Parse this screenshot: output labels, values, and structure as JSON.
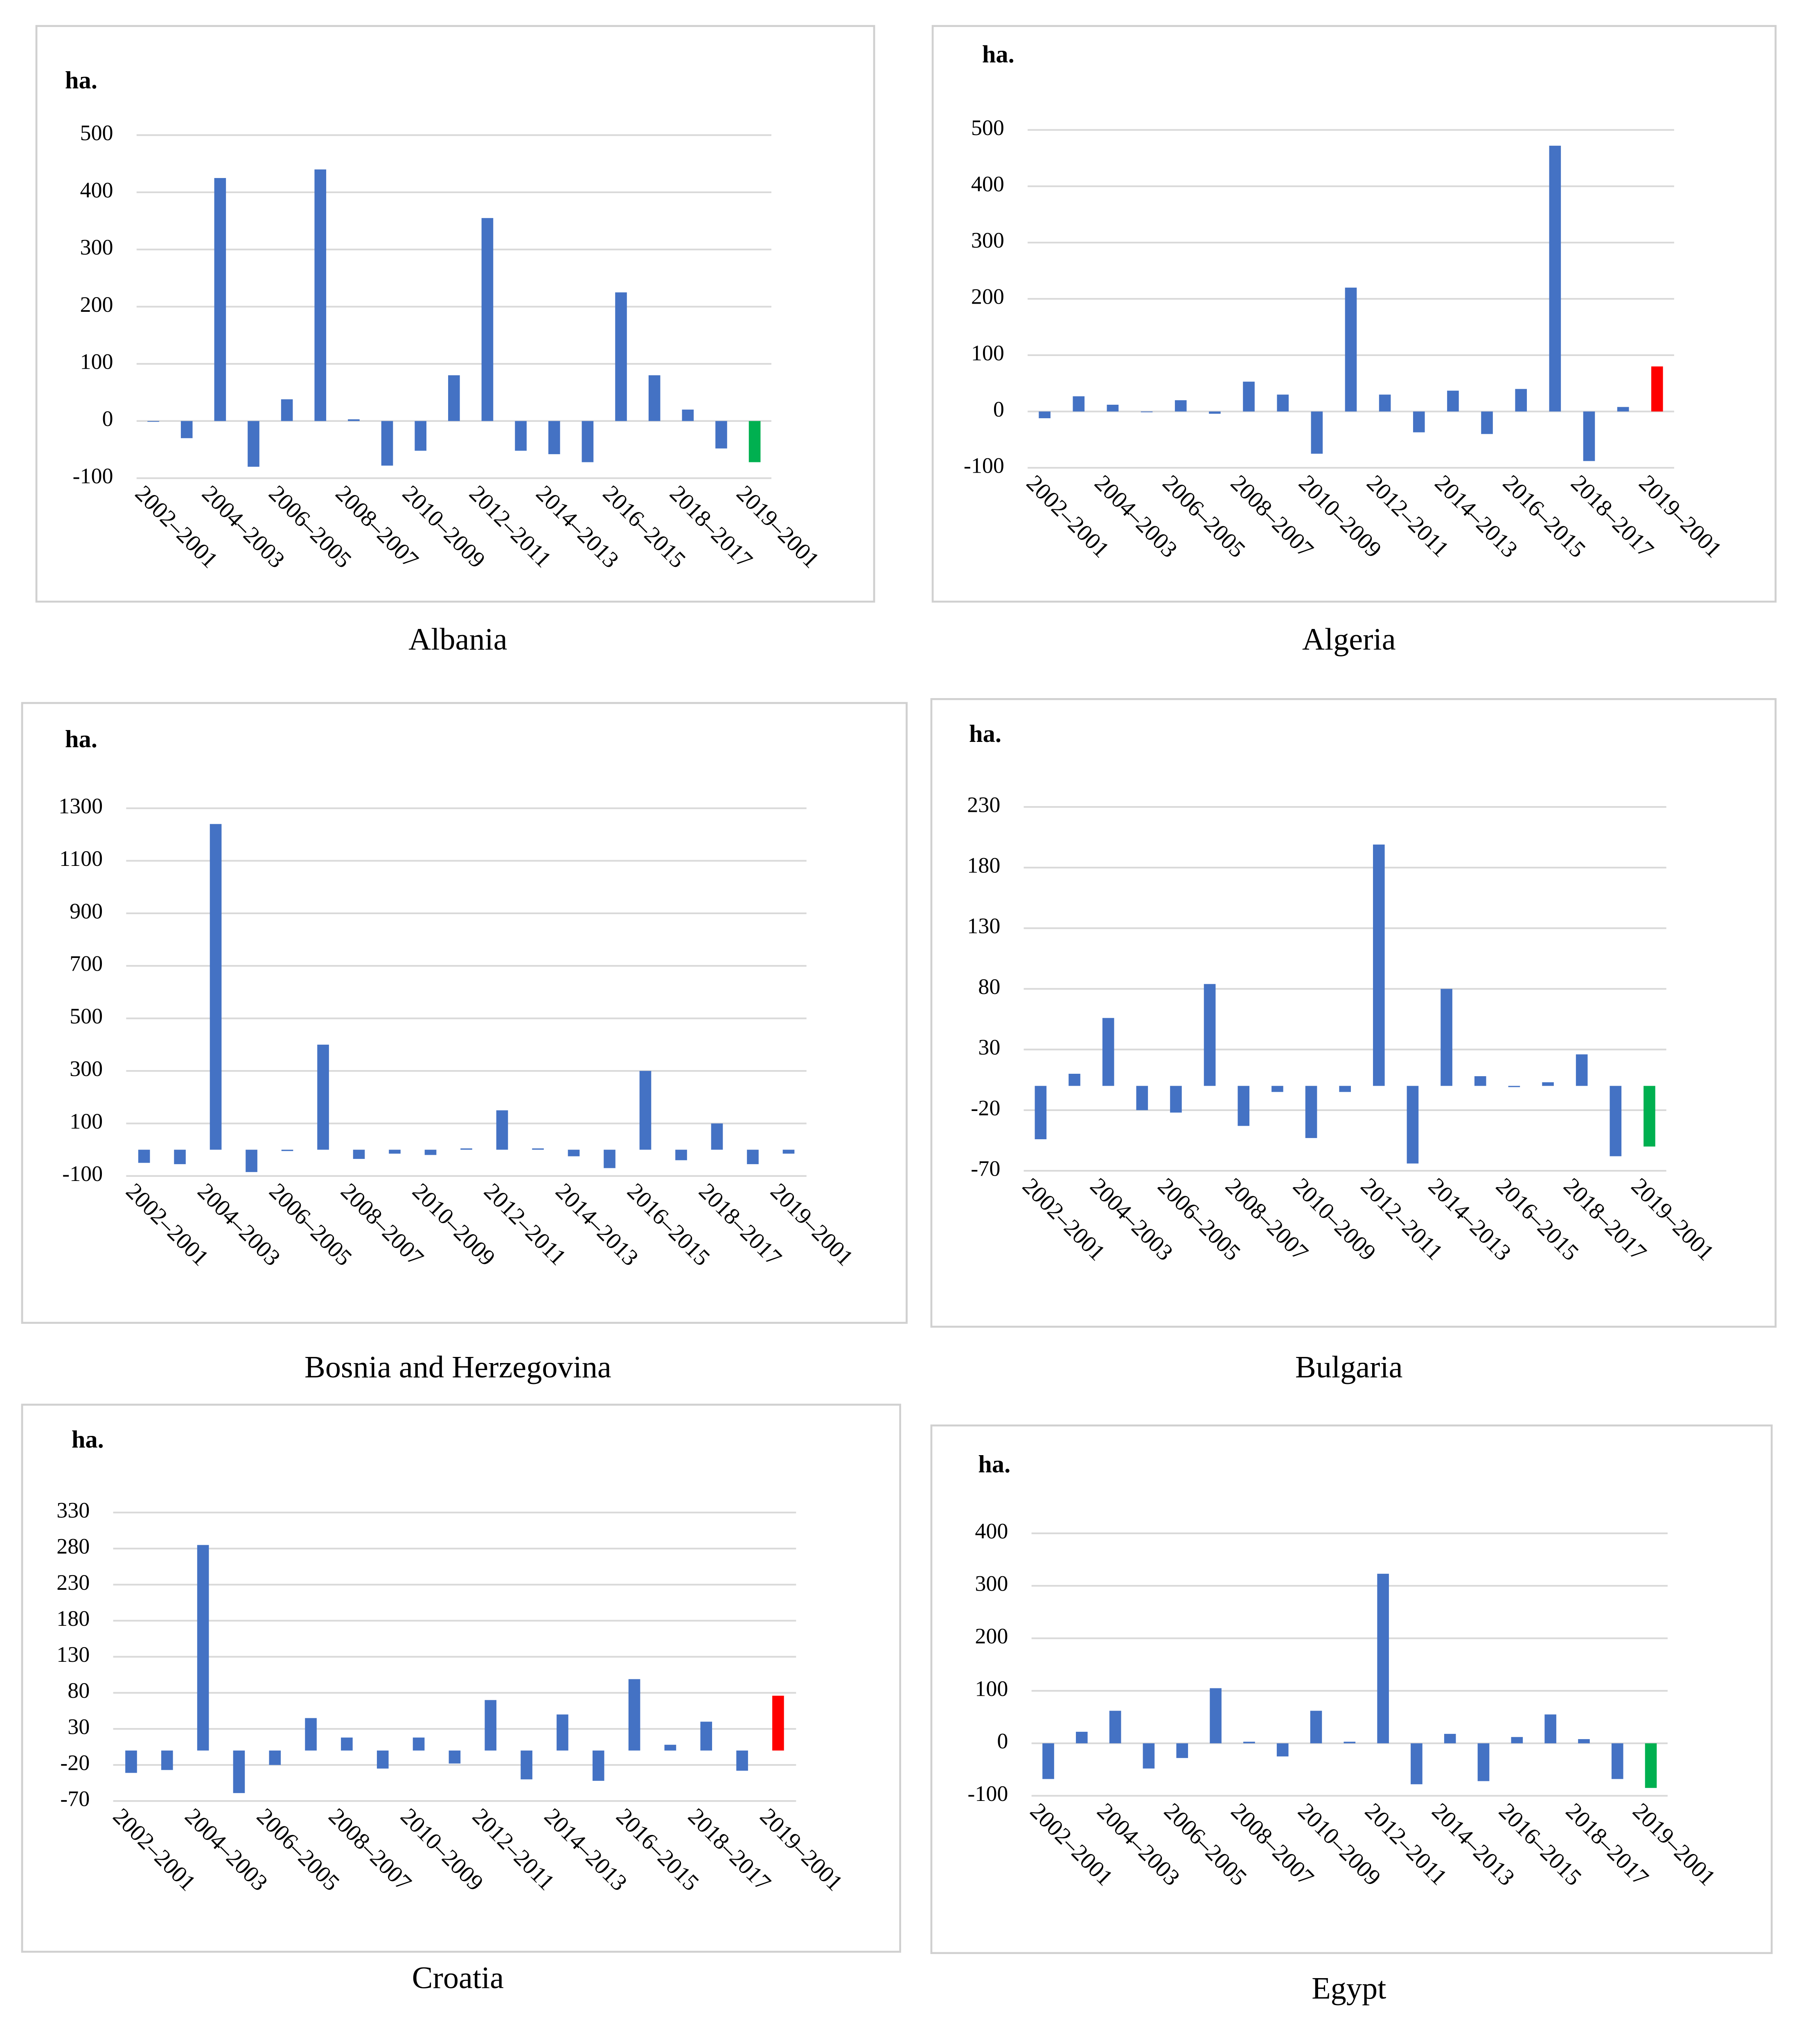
{
  "chart_data": [
    {
      "type": "bar",
      "title": "Albania",
      "ylabel": "ha.",
      "categories": [
        "2002–2001",
        null,
        "2004–2003",
        null,
        "2006–2005",
        null,
        "2008–2007",
        null,
        "2010–2009",
        null,
        "2012–2011",
        null,
        "2014–2013",
        null,
        "2016–2015",
        null,
        "2018–2017",
        null,
        "2019–2001"
      ],
      "values": [
        0,
        -30,
        425,
        -80,
        38,
        440,
        3,
        -78,
        -52,
        80,
        355,
        -52,
        -58,
        -72,
        225,
        80,
        20,
        -48,
        -72
      ],
      "colors": [
        "#4472c4",
        "#4472c4",
        "#4472c4",
        "#4472c4",
        "#4472c4",
        "#4472c4",
        "#4472c4",
        "#4472c4",
        "#4472c4",
        "#4472c4",
        "#4472c4",
        "#4472c4",
        "#4472c4",
        "#4472c4",
        "#4472c4",
        "#4472c4",
        "#4472c4",
        "#4472c4",
        "#00b050"
      ],
      "ylim": [
        -100,
        500
      ],
      "yticks": [
        500,
        400,
        300,
        200,
        100,
        0,
        -100
      ],
      "grid": true
    },
    {
      "type": "bar",
      "title": "Algeria",
      "ylabel": "ha.",
      "categories": [
        "2002–2001",
        null,
        "2004–2003",
        null,
        "2006–2005",
        null,
        "2008–2007",
        null,
        "2010–2009",
        null,
        "2012–2011",
        null,
        "2014–2013",
        null,
        "2016–2015",
        null,
        "2018–2017",
        null,
        "2019–2001"
      ],
      "values": [
        -12,
        27,
        12,
        0,
        20,
        -4,
        53,
        30,
        -75,
        220,
        30,
        -37,
        37,
        -40,
        40,
        472,
        -88,
        8,
        80
      ],
      "colors": [
        "#4472c4",
        "#4472c4",
        "#4472c4",
        "#4472c4",
        "#4472c4",
        "#4472c4",
        "#4472c4",
        "#4472c4",
        "#4472c4",
        "#4472c4",
        "#4472c4",
        "#4472c4",
        "#4472c4",
        "#4472c4",
        "#4472c4",
        "#4472c4",
        "#4472c4",
        "#4472c4",
        "#ff0000"
      ],
      "ylim": [
        -100,
        500
      ],
      "yticks": [
        500,
        400,
        300,
        200,
        100,
        0,
        -100
      ],
      "grid": true
    },
    {
      "type": "bar",
      "title": "Bosnia and Herzegovina",
      "ylabel": "ha.",
      "categories": [
        "2002–2001",
        null,
        "2004–2003",
        null,
        "2006–2005",
        null,
        "2008–2007",
        null,
        "2010–2009",
        null,
        "2012–2011",
        null,
        "2014–2013",
        null,
        "2016–2015",
        null,
        "2018–2017",
        null,
        "2019–2001"
      ],
      "values": [
        -50,
        -55,
        1240,
        -85,
        -5,
        400,
        -35,
        -15,
        -20,
        5,
        150,
        5,
        -25,
        -70,
        300,
        -40,
        100,
        -55,
        -15
      ],
      "colors": [
        "#4472c4",
        "#4472c4",
        "#4472c4",
        "#4472c4",
        "#4472c4",
        "#4472c4",
        "#4472c4",
        "#4472c4",
        "#4472c4",
        "#4472c4",
        "#4472c4",
        "#4472c4",
        "#4472c4",
        "#4472c4",
        "#4472c4",
        "#4472c4",
        "#4472c4",
        "#4472c4",
        "#4472c4"
      ],
      "ylim": [
        -100,
        1300
      ],
      "yticks": [
        1300,
        1100,
        900,
        700,
        500,
        300,
        100,
        -100
      ],
      "grid": true
    },
    {
      "type": "bar",
      "title": "Bulgaria",
      "ylabel": "ha.",
      "categories": [
        "2002–2001",
        null,
        "2004–2003",
        null,
        "2006–2005",
        null,
        "2008–2007",
        null,
        "2010–2009",
        null,
        "2012–2011",
        null,
        "2014–2013",
        null,
        "2016–2015",
        null,
        "2018–2017",
        null,
        "2019–2001"
      ],
      "values": [
        -44,
        10,
        56,
        -20,
        -22,
        84,
        -33,
        -5,
        -43,
        -5,
        199,
        -64,
        80,
        8,
        -1,
        3,
        26,
        -58,
        -50
      ],
      "colors": [
        "#4472c4",
        "#4472c4",
        "#4472c4",
        "#4472c4",
        "#4472c4",
        "#4472c4",
        "#4472c4",
        "#4472c4",
        "#4472c4",
        "#4472c4",
        "#4472c4",
        "#4472c4",
        "#4472c4",
        "#4472c4",
        "#4472c4",
        "#4472c4",
        "#4472c4",
        "#4472c4",
        "#00b050"
      ],
      "ylim": [
        -70,
        230
      ],
      "yticks": [
        230,
        180,
        130,
        80,
        30,
        -20,
        -70
      ],
      "grid": true
    },
    {
      "type": "bar",
      "title": "Croatia",
      "ylabel": "ha.",
      "categories": [
        "2002–2001",
        null,
        "2004–2003",
        null,
        "2006–2005",
        null,
        "2008–2007",
        null,
        "2010–2009",
        null,
        "2012–2011",
        null,
        "2014–2013",
        null,
        "2016–2015",
        null,
        "2018–2017",
        null,
        "2019–2001"
      ],
      "values": [
        -31,
        -27,
        285,
        -59,
        -20,
        45,
        18,
        -25,
        18,
        -18,
        70,
        -40,
        50,
        -42,
        99,
        8,
        40,
        -28,
        76
      ],
      "colors": [
        "#4472c4",
        "#4472c4",
        "#4472c4",
        "#4472c4",
        "#4472c4",
        "#4472c4",
        "#4472c4",
        "#4472c4",
        "#4472c4",
        "#4472c4",
        "#4472c4",
        "#4472c4",
        "#4472c4",
        "#4472c4",
        "#4472c4",
        "#4472c4",
        "#4472c4",
        "#4472c4",
        "#ff0000"
      ],
      "ylim": [
        -70,
        330
      ],
      "yticks": [
        330,
        280,
        230,
        180,
        130,
        80,
        30,
        -20,
        -70
      ],
      "grid": true
    },
    {
      "type": "bar",
      "title": "Egypt",
      "ylabel": "ha.",
      "categories": [
        "2002–2001",
        null,
        "2004–2003",
        null,
        "2006–2005",
        null,
        "2008–2007",
        null,
        "2010–2009",
        null,
        "2012–2011",
        null,
        "2014–2013",
        null,
        "2016–2015",
        null,
        "2018–2017",
        null,
        "2019–2001"
      ],
      "values": [
        -68,
        22,
        62,
        -48,
        -28,
        105,
        3,
        -25,
        62,
        3,
        323,
        -78,
        18,
        -72,
        12,
        55,
        8,
        -68,
        -85
      ],
      "colors": [
        "#4472c4",
        "#4472c4",
        "#4472c4",
        "#4472c4",
        "#4472c4",
        "#4472c4",
        "#4472c4",
        "#4472c4",
        "#4472c4",
        "#4472c4",
        "#4472c4",
        "#4472c4",
        "#4472c4",
        "#4472c4",
        "#4472c4",
        "#4472c4",
        "#4472c4",
        "#4472c4",
        "#00b050"
      ],
      "ylim": [
        -100,
        400
      ],
      "yticks": [
        400,
        300,
        200,
        100,
        0,
        -100
      ],
      "grid": true
    }
  ]
}
